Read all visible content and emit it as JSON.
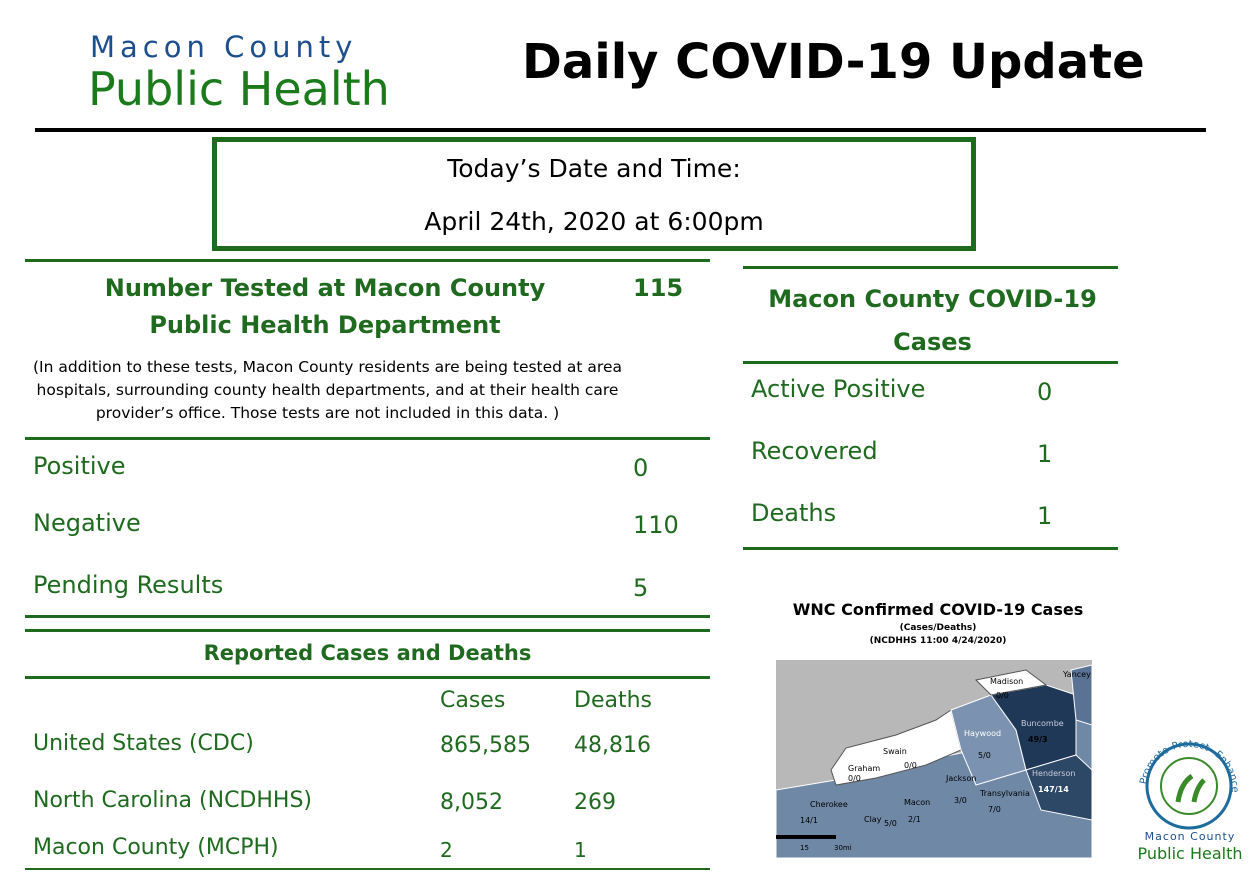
{
  "header": {
    "org_line1": "Macon County",
    "org_line2": "Public Health",
    "title": "Daily COVID-19 Update"
  },
  "date_box": {
    "label": "Today’s Date and Time:",
    "value": "April 24th, 2020 at 6:00pm"
  },
  "testing": {
    "heading": "Number Tested at Macon County Public Health Department",
    "total": 115,
    "note": "(In addition to these tests, Macon County residents are being tested at area hospitals, surrounding county health departments, and at their health care provider’s office. Those tests are not included in this data. )",
    "rows": [
      {
        "label": "Positive",
        "value": 0
      },
      {
        "label": "Negative",
        "value": 110
      },
      {
        "label": "Pending Results",
        "value": 5
      }
    ]
  },
  "reported": {
    "heading": "Reported Cases and Deaths",
    "columns": [
      "Cases",
      "Deaths"
    ],
    "rows": [
      [
        "United States (CDC)",
        "865,585",
        "48,816"
      ],
      [
        "North Carolina (NCDHHS)",
        "8,052",
        "269"
      ],
      [
        "Macon County (MCPH)",
        "2",
        "1"
      ]
    ]
  },
  "macon_cases": {
    "heading": "Macon County COVID-19 Cases",
    "rows": [
      {
        "label": "Active Positive",
        "value": 0
      },
      {
        "label": "Recovered",
        "value": 1
      },
      {
        "label": "Deaths",
        "value": 1
      }
    ]
  },
  "map": {
    "title": "WNC Confirmed COVID-19 Cases",
    "subtitle": "(Cases/Deaths)",
    "source": "(NCDHHS 11:00 4/24/2020)",
    "counties": [
      {
        "name": "Madison",
        "label": "0/0"
      },
      {
        "name": "Yancey"
      },
      {
        "name": "Buncombe",
        "label": "49/3"
      },
      {
        "name": "Haywood",
        "label": "5/0"
      },
      {
        "name": "Swain",
        "label": "0/0"
      },
      {
        "name": "Graham",
        "label": "0/0"
      },
      {
        "name": "Jackson",
        "label": "3/0"
      },
      {
        "name": "Henderson",
        "label": "147/14"
      },
      {
        "name": "Transylvania",
        "label": "7/0"
      },
      {
        "name": "Cherokee",
        "label": "14/1"
      },
      {
        "name": "Clay",
        "label": "5/0"
      },
      {
        "name": "Macon",
        "label": "2/1"
      }
    ],
    "scale": [
      "15",
      "30mi"
    ]
  },
  "logo": {
    "ring": [
      "Promote",
      "Protect",
      "Enhance"
    ],
    "line1": "Macon County",
    "line2": "Public Health"
  }
}
